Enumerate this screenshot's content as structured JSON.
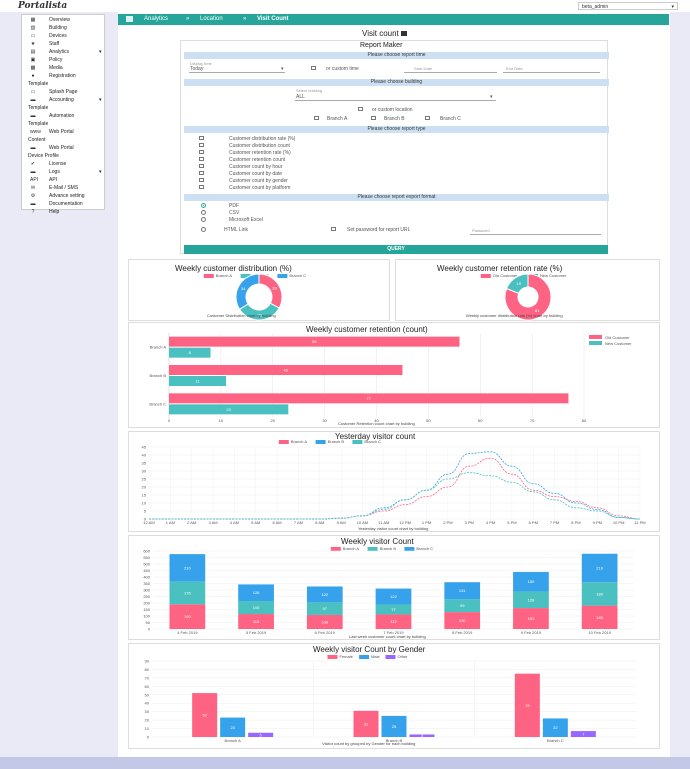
{
  "app": {
    "logo": "Portalista",
    "user": "beta_admin"
  },
  "sidebar": [
    {
      "label": "Overview",
      "icon": "grid-icon",
      "glyph": "▦",
      "top": 2
    },
    {
      "label": "Building",
      "icon": "building-icon",
      "glyph": "▥",
      "top": 10
    },
    {
      "label": "Devices",
      "icon": "devices-icon",
      "glyph": "▭",
      "top": 18
    },
    {
      "label": "Staff",
      "icon": "star-icon",
      "glyph": "★",
      "top": 26
    },
    {
      "label": "Analytics",
      "icon": "chart-icon",
      "glyph": "▤",
      "top": 34,
      "chev": true
    },
    {
      "label": "Policy",
      "icon": "policy-icon",
      "glyph": "▣",
      "top": 42
    },
    {
      "label": "Media",
      "icon": "media-icon",
      "glyph": "▩",
      "top": 50
    },
    {
      "label": "Registration",
      "icon": "registration-icon",
      "glyph": "●",
      "top": 58
    },
    {
      "label": "Template",
      "section": true,
      "top": 66
    },
    {
      "label": "Splash Page",
      "icon": "splash-icon",
      "glyph": "▭",
      "top": 74
    },
    {
      "label": "Accounting",
      "icon": "accounting-icon",
      "glyph": "▬",
      "top": 82,
      "chev": true
    },
    {
      "label": "Template",
      "section": true,
      "top": 90
    },
    {
      "label": "Automation",
      "icon": "automation-icon",
      "glyph": "▬",
      "top": 98
    },
    {
      "label": "Template",
      "section": true,
      "top": 106
    },
    {
      "label": "Web Portal",
      "icon": "web-icon",
      "glyph": "www",
      "top": 114
    },
    {
      "label": "Content",
      "section": true,
      "top": 122
    },
    {
      "label": "Web Portal",
      "icon": "portal-icon",
      "glyph": "▬",
      "top": 130
    },
    {
      "label": "Device Profile",
      "section": true,
      "top": 138
    },
    {
      "label": "License",
      "icon": "license-icon",
      "glyph": "✔",
      "top": 146
    },
    {
      "label": "Logs",
      "icon": "logs-icon",
      "glyph": "▬",
      "top": 154,
      "chev": true
    },
    {
      "label": "API",
      "icon": "api-icon",
      "glyph": "API",
      "top": 162
    },
    {
      "label": "E-Mail / SMS",
      "icon": "mail-icon",
      "glyph": "✉",
      "top": 170
    },
    {
      "label": "Advance setting",
      "icon": "settings-icon",
      "glyph": "⚙",
      "top": 178
    },
    {
      "label": "Documentation",
      "icon": "doc-icon",
      "glyph": "▬",
      "top": 186
    },
    {
      "label": "Help",
      "icon": "help-icon",
      "glyph": "?",
      "top": 194
    }
  ],
  "breadcrumb": {
    "icon": "menu-icon",
    "items": [
      "Analytics",
      "Location",
      "Visit Count"
    ],
    "sep": "»"
  },
  "page": {
    "title": "Visit count"
  },
  "report": {
    "title": "Report Maker",
    "sec_time": "Please choose report time",
    "display_label": "Display time",
    "display_value": "Today",
    "custom_time": "or custom time",
    "start_date": "Start Date",
    "end_date": "End Date",
    "sec_building": "Please choose building",
    "select_label": "Select building",
    "select_value": "ALL",
    "custom_loc": "or custom location",
    "branches": [
      "Branch A",
      "Branch B",
      "Branch C"
    ],
    "sec_type": "Please choose report type",
    "types": [
      "Customer distribution rate (%)",
      "Customer distribution count",
      "Customer retention rate (%)",
      "Customer retention count",
      "Customer count by hour",
      "Customer count by date",
      "Customer count by gender",
      "Customer count by platform"
    ],
    "sec_format": "Please choose report export format",
    "formats": [
      "PDF",
      "CSV",
      "Microsoft Excel",
      "HTML Link"
    ],
    "password_opt": "Set password for report URL",
    "password": "Password",
    "query": "QUERY"
  },
  "colors": {
    "a": "#ff6384",
    "b": "#36a2eb",
    "c": "#4bc0c0",
    "purple": "#9966ff",
    "teal": "#26a69a"
  },
  "charts": {
    "dist": {
      "title": "Weekly customer distribution (%)",
      "caption": "Customer Distribution chart by building",
      "legend": [
        "Branch A",
        "Branch B",
        "Branch C"
      ],
      "values": [
        33,
        33,
        34
      ]
    },
    "retrate": {
      "title": "Weekly customer retention rate (%)",
      "caption": "Weekly customer distribution rate (%) chart by building",
      "legend": [
        "Old Customer",
        "New Customer"
      ],
      "values": [
        81,
        19
      ]
    },
    "retcount": {
      "title": "Weekly customer retention (count)",
      "caption": "Customer Retention count chart by building",
      "legend": [
        "Old Customer",
        "New Customer"
      ],
      "categories": [
        "Branch A",
        "Branch B",
        "Branch C"
      ],
      "old": [
        56,
        45,
        77
      ],
      "new": [
        8,
        11,
        23
      ],
      "ticks": [
        "0",
        "10",
        "20",
        "30",
        "40",
        "50",
        "60",
        "70",
        "80"
      ]
    },
    "yesterday": {
      "title": "Yesterday visitor count",
      "caption": "Yesterday visitor count chart by building",
      "legend": [
        "Branch A",
        "Branch B",
        "Branch C"
      ],
      "hours": [
        "12 AM",
        "1 AM",
        "2 AM",
        "3 AM",
        "4 AM",
        "5 AM",
        "6 AM",
        "7 AM",
        "8 AM",
        "9 AM",
        "10 AM",
        "11 AM",
        "12 PM",
        "1 PM",
        "2 PM",
        "3 PM",
        "4 PM",
        "5 PM",
        "6 PM",
        "7 PM",
        "8 PM",
        "9 PM",
        "10 PM",
        "11 PM"
      ],
      "ylim": [
        0,
        45
      ],
      "yticks": [
        "0",
        "5",
        "10",
        "15",
        "20",
        "25",
        "30",
        "35",
        "40",
        "45"
      ],
      "a": [
        0,
        0,
        0,
        0,
        0,
        0,
        0,
        0,
        0,
        0.5,
        2,
        5,
        9,
        14,
        20,
        33,
        38,
        28,
        18,
        14,
        11,
        7,
        2,
        0
      ],
      "b": [
        0,
        0,
        0,
        0,
        0,
        0,
        0,
        0,
        0,
        0.5,
        2,
        7,
        12,
        18,
        28,
        41,
        42,
        33,
        22,
        16,
        10,
        6,
        1,
        0
      ],
      "c": [
        0,
        0,
        0,
        0,
        0,
        0,
        0,
        0,
        0,
        0.5,
        2,
        6,
        12,
        18,
        25,
        29,
        27,
        23,
        17,
        12,
        7,
        5,
        1,
        0
      ]
    },
    "weekly": {
      "title": "Weekly visitor Count",
      "caption": "Last week customer count chart by building",
      "legend": [
        "Branch A",
        "Branch B",
        "Branch C"
      ],
      "dates": [
        "4 Feb 2019",
        "5 Feb 2019",
        "6 Feb 2019",
        "7 Feb 2019",
        "8 Feb 2019",
        "9 Feb 2019",
        "10 Feb 2019"
      ],
      "ylim": [
        0,
        600
      ],
      "yticks": [
        "0",
        "50",
        "100",
        "150",
        "200",
        "250",
        "300",
        "350",
        "400",
        "450",
        "500",
        "550",
        "600"
      ],
      "a": [
        190,
        115,
        108,
        112,
        130,
        161,
        180
      ],
      "c": [
        176,
        100,
        97,
        77,
        99,
        128,
        180
      ],
      "b": [
        210,
        128,
        122,
        122,
        131,
        150,
        219
      ]
    },
    "gender": {
      "title": "Weekly visitor Count by Gender",
      "caption": "Visitor count by grouped by Gender for each building",
      "legend": [
        "Female",
        "Male",
        "Other"
      ],
      "categories": [
        "Branch A",
        "Branch B",
        "Branch C"
      ],
      "female": [
        52,
        31,
        75
      ],
      "male": [
        23,
        25,
        22
      ],
      "other": [
        5,
        3,
        7
      ],
      "ylim": [
        0,
        90
      ],
      "yticks": [
        "0",
        "10",
        "20",
        "30",
        "40",
        "50",
        "60",
        "70",
        "80",
        "90"
      ]
    }
  }
}
